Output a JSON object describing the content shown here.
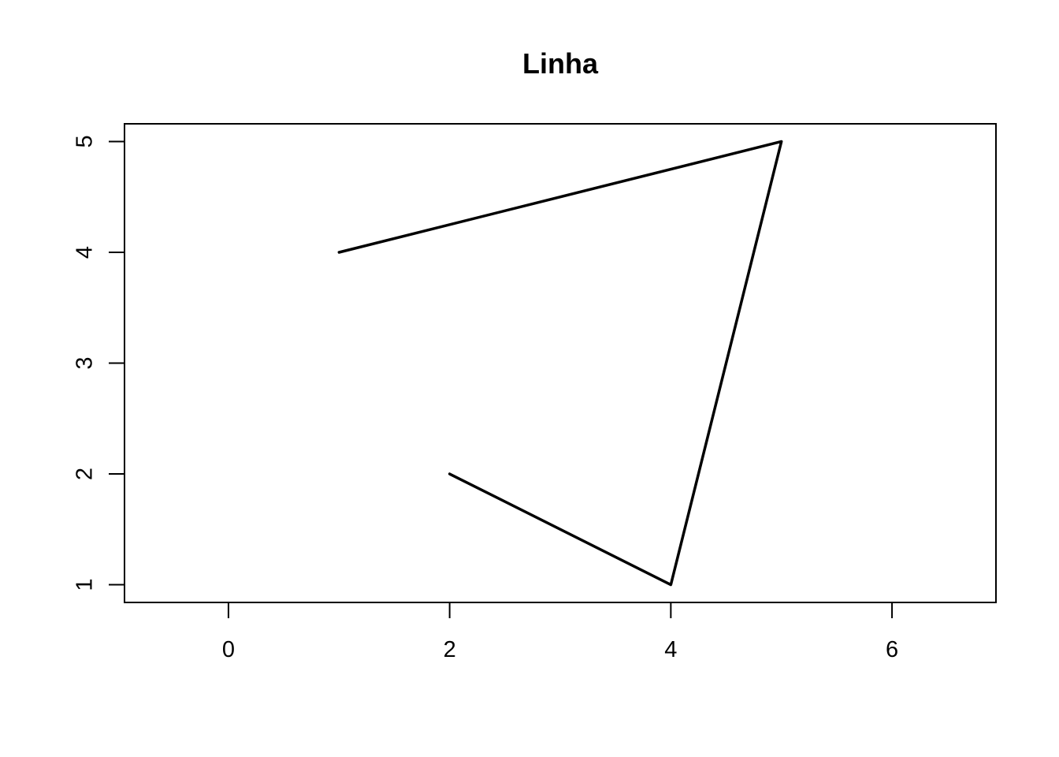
{
  "chart_data": {
    "type": "line",
    "title": "Linha",
    "xlabel": "",
    "ylabel": "",
    "xlim": [
      -0.94,
      6.94
    ],
    "ylim": [
      0.84,
      5.16
    ],
    "x_ticks": [
      0,
      2,
      4,
      6
    ],
    "y_ticks": [
      1,
      2,
      3,
      4,
      5
    ],
    "grid": false,
    "series": [
      {
        "points": [
          {
            "x": 2,
            "y": 2
          },
          {
            "x": 4,
            "y": 1
          },
          {
            "x": 5,
            "y": 5
          },
          {
            "x": 1,
            "y": 4
          }
        ],
        "color": "#000000"
      }
    ]
  }
}
